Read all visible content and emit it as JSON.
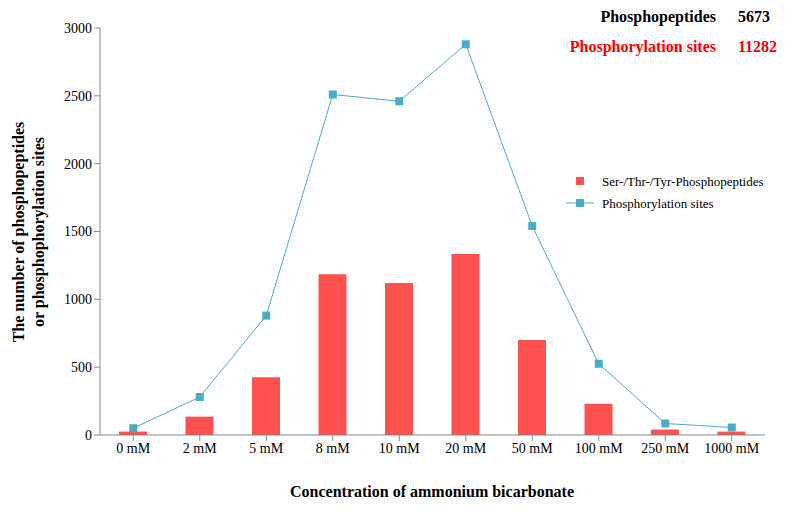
{
  "chart_data": {
    "type": "bar",
    "x_label": "Concentration of ammonium bicarbonate",
    "y_label": [
      "The number of phosphopeptides",
      "or phosphophorylation sites"
    ],
    "categories": [
      "0 mM",
      "2 mM",
      "5 mM",
      "8 mM",
      "10 mM",
      "20 mM",
      "50 mM",
      "100 mM",
      "250 mM",
      "1000 mM"
    ],
    "series": [
      {
        "name": "Ser-/Thr-/Tyr-Phosphopeptides",
        "type": "bar",
        "color": "#ff5050",
        "values": [
          25,
          135,
          425,
          1185,
          1120,
          1335,
          700,
          230,
          40,
          25
        ]
      },
      {
        "name": "Phosphorylation sites",
        "type": "line",
        "color": "#4bacc6",
        "marker": "square",
        "values": [
          50,
          280,
          880,
          2510,
          2460,
          2880,
          1540,
          525,
          85,
          55
        ]
      }
    ],
    "ylim": [
      0,
      3000
    ],
    "yticks": [
      0,
      500,
      1000,
      1500,
      2000,
      2500,
      3000
    ],
    "grid": false,
    "legend": "right",
    "annotations": [
      {
        "text": "Phosphopeptides",
        "value": 5673,
        "color": "#000000"
      },
      {
        "text": "Phosphorylation sites",
        "value": 11282,
        "color": "#ff0000"
      }
    ]
  }
}
